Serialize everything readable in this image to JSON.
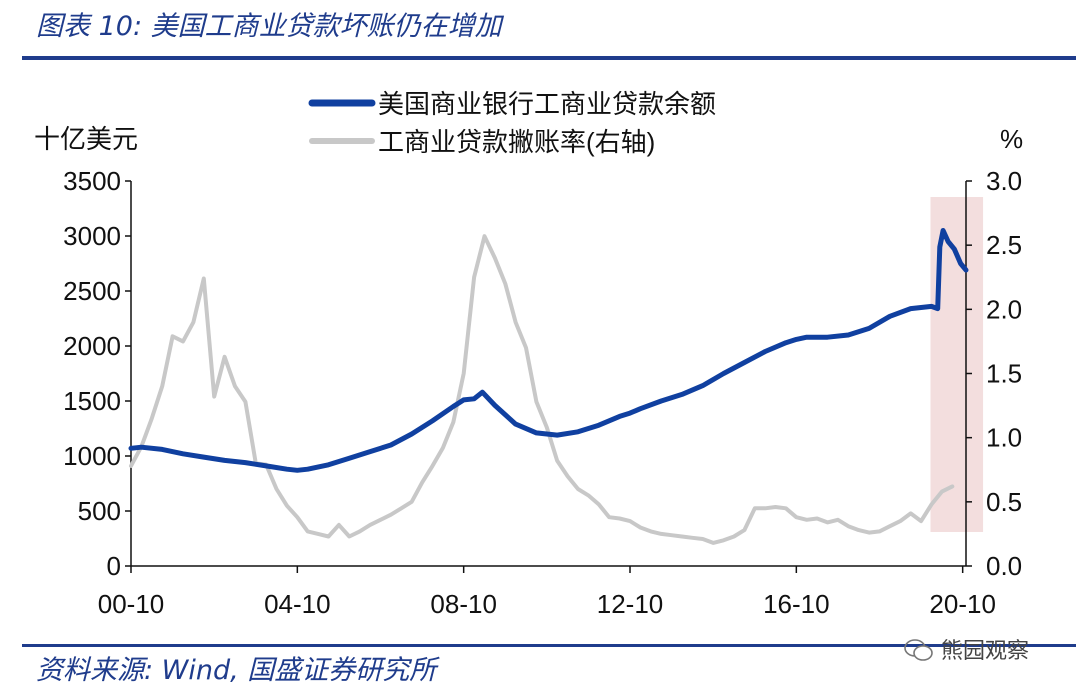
{
  "header": {
    "title": "图表 10:  美国工商业贷款坏账仍在增加"
  },
  "footer": {
    "source": "资料来源:  Wind, 国盛证券研究所",
    "watermark": "熊园观察"
  },
  "chart_data": {
    "type": "line",
    "y_left_unit": "十亿美元",
    "y_right_unit": "%",
    "ylim_left": [
      0,
      3500
    ],
    "ylim_right": [
      0.0,
      3.0
    ],
    "xlim": [
      2000.75,
      2020.83
    ],
    "yticks_left": [
      "3500",
      "3000",
      "2500",
      "2000",
      "1500",
      "1000",
      "500",
      "0"
    ],
    "yticks_right": [
      "3.0",
      "2.5",
      "2.0",
      "1.5",
      "1.0",
      "0.5",
      "0.0"
    ],
    "xticks": [
      {
        "label": "00-10",
        "x": 2000.75
      },
      {
        "label": "04-10",
        "x": 2004.75
      },
      {
        "label": "08-10",
        "x": 2008.75
      },
      {
        "label": "12-10",
        "x": 2012.75
      },
      {
        "label": "16-10",
        "x": 2016.75
      },
      {
        "label": "20-10",
        "x": 2020.75
      }
    ],
    "legend_position": "top-center",
    "highlight": {
      "from": 2020.12,
      "to": 2021.0,
      "color": "#f3dede"
    },
    "series": [
      {
        "name": "美国商业银行工商业贷款余额",
        "axis": "left",
        "color": "#1040a0",
        "points": [
          [
            2000.75,
            1070
          ],
          [
            2001.0,
            1080
          ],
          [
            2001.5,
            1060
          ],
          [
            2002.0,
            1020
          ],
          [
            2002.5,
            990
          ],
          [
            2003.0,
            960
          ],
          [
            2003.5,
            940
          ],
          [
            2004.0,
            910
          ],
          [
            2004.5,
            880
          ],
          [
            2004.75,
            870
          ],
          [
            2005.0,
            880
          ],
          [
            2005.5,
            920
          ],
          [
            2006.0,
            980
          ],
          [
            2006.5,
            1040
          ],
          [
            2007.0,
            1100
          ],
          [
            2007.5,
            1200
          ],
          [
            2008.0,
            1320
          ],
          [
            2008.5,
            1450
          ],
          [
            2008.75,
            1510
          ],
          [
            2009.0,
            1520
          ],
          [
            2009.2,
            1580
          ],
          [
            2009.5,
            1460
          ],
          [
            2010.0,
            1290
          ],
          [
            2010.5,
            1210
          ],
          [
            2011.0,
            1190
          ],
          [
            2011.5,
            1220
          ],
          [
            2012.0,
            1280
          ],
          [
            2012.5,
            1360
          ],
          [
            2012.75,
            1390
          ],
          [
            2013.0,
            1430
          ],
          [
            2013.5,
            1500
          ],
          [
            2014.0,
            1560
          ],
          [
            2014.5,
            1640
          ],
          [
            2015.0,
            1750
          ],
          [
            2015.5,
            1850
          ],
          [
            2016.0,
            1950
          ],
          [
            2016.5,
            2030
          ],
          [
            2016.75,
            2060
          ],
          [
            2017.0,
            2080
          ],
          [
            2017.5,
            2080
          ],
          [
            2018.0,
            2100
          ],
          [
            2018.5,
            2160
          ],
          [
            2019.0,
            2270
          ],
          [
            2019.5,
            2340
          ],
          [
            2020.0,
            2360
          ],
          [
            2020.15,
            2340
          ],
          [
            2020.2,
            2900
          ],
          [
            2020.28,
            3050
          ],
          [
            2020.4,
            2950
          ],
          [
            2020.55,
            2880
          ],
          [
            2020.7,
            2750
          ],
          [
            2020.83,
            2690
          ]
        ]
      },
      {
        "name": "工商业贷款撇账率(右轴)",
        "axis": "right",
        "color": "#c8c8c8",
        "points": [
          [
            2000.75,
            0.78
          ],
          [
            2001.0,
            0.93
          ],
          [
            2001.25,
            1.15
          ],
          [
            2001.5,
            1.4
          ],
          [
            2001.75,
            1.79
          ],
          [
            2002.0,
            1.75
          ],
          [
            2002.25,
            1.9
          ],
          [
            2002.5,
            2.24
          ],
          [
            2002.75,
            1.32
          ],
          [
            2003.0,
            1.63
          ],
          [
            2003.25,
            1.4
          ],
          [
            2003.5,
            1.28
          ],
          [
            2003.75,
            0.8
          ],
          [
            2004.0,
            0.79
          ],
          [
            2004.25,
            0.6
          ],
          [
            2004.5,
            0.47
          ],
          [
            2004.75,
            0.38
          ],
          [
            2005.0,
            0.27
          ],
          [
            2005.25,
            0.25
          ],
          [
            2005.5,
            0.23
          ],
          [
            2005.75,
            0.32
          ],
          [
            2006.0,
            0.23
          ],
          [
            2006.25,
            0.27
          ],
          [
            2006.5,
            0.32
          ],
          [
            2006.75,
            0.36
          ],
          [
            2007.0,
            0.4
          ],
          [
            2007.25,
            0.45
          ],
          [
            2007.5,
            0.5
          ],
          [
            2007.75,
            0.65
          ],
          [
            2008.0,
            0.78
          ],
          [
            2008.25,
            0.92
          ],
          [
            2008.5,
            1.12
          ],
          [
            2008.75,
            1.5
          ],
          [
            2009.0,
            2.25
          ],
          [
            2009.25,
            2.57
          ],
          [
            2009.5,
            2.4
          ],
          [
            2009.75,
            2.2
          ],
          [
            2010.0,
            1.9
          ],
          [
            2010.25,
            1.7
          ],
          [
            2010.5,
            1.28
          ],
          [
            2010.75,
            1.08
          ],
          [
            2011.0,
            0.82
          ],
          [
            2011.25,
            0.7
          ],
          [
            2011.5,
            0.6
          ],
          [
            2011.75,
            0.55
          ],
          [
            2012.0,
            0.48
          ],
          [
            2012.25,
            0.38
          ],
          [
            2012.5,
            0.37
          ],
          [
            2012.75,
            0.35
          ],
          [
            2013.0,
            0.3
          ],
          [
            2013.25,
            0.27
          ],
          [
            2013.5,
            0.25
          ],
          [
            2013.75,
            0.24
          ],
          [
            2014.0,
            0.23
          ],
          [
            2014.25,
            0.22
          ],
          [
            2014.5,
            0.21
          ],
          [
            2014.75,
            0.18
          ],
          [
            2015.0,
            0.2
          ],
          [
            2015.25,
            0.23
          ],
          [
            2015.5,
            0.28
          ],
          [
            2015.75,
            0.45
          ],
          [
            2016.0,
            0.45
          ],
          [
            2016.25,
            0.46
          ],
          [
            2016.5,
            0.45
          ],
          [
            2016.75,
            0.38
          ],
          [
            2017.0,
            0.36
          ],
          [
            2017.25,
            0.37
          ],
          [
            2017.5,
            0.34
          ],
          [
            2017.75,
            0.36
          ],
          [
            2018.0,
            0.31
          ],
          [
            2018.25,
            0.28
          ],
          [
            2018.5,
            0.26
          ],
          [
            2018.75,
            0.27
          ],
          [
            2019.0,
            0.31
          ],
          [
            2019.25,
            0.35
          ],
          [
            2019.5,
            0.41
          ],
          [
            2019.75,
            0.35
          ],
          [
            2020.0,
            0.48
          ],
          [
            2020.25,
            0.58
          ],
          [
            2020.5,
            0.62
          ]
        ]
      }
    ]
  }
}
